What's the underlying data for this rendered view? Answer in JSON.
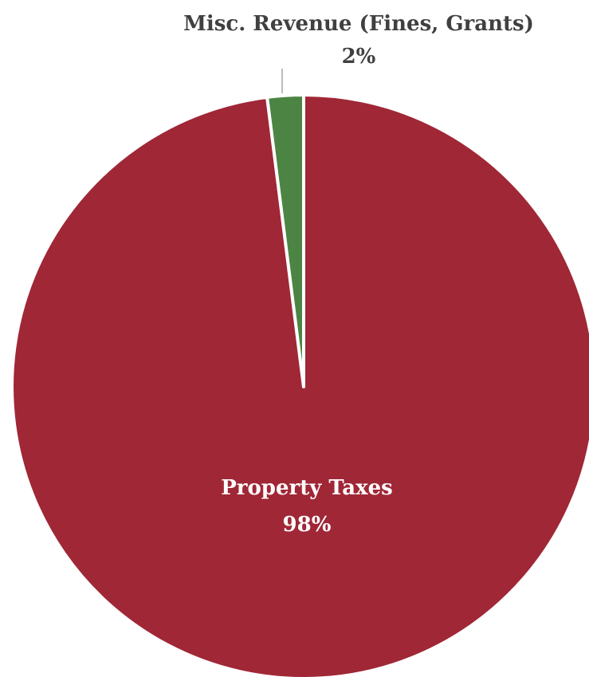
{
  "chart_data": {
    "type": "pie",
    "title": "",
    "slices": [
      {
        "label": "Property Taxes",
        "value": 98,
        "value_label": "98%",
        "color": "#A02736",
        "label_color": "#ffffff",
        "label_position": "inside"
      },
      {
        "label": "Misc. Revenue (Fines, Grants)",
        "value": 2,
        "value_label": "2%",
        "color": "#4C8444",
        "label_color": "#404040",
        "label_position": "outside"
      }
    ],
    "slice_border_color": "#ffffff",
    "leader_line_color": "#A6A6A6",
    "legend": "none"
  }
}
